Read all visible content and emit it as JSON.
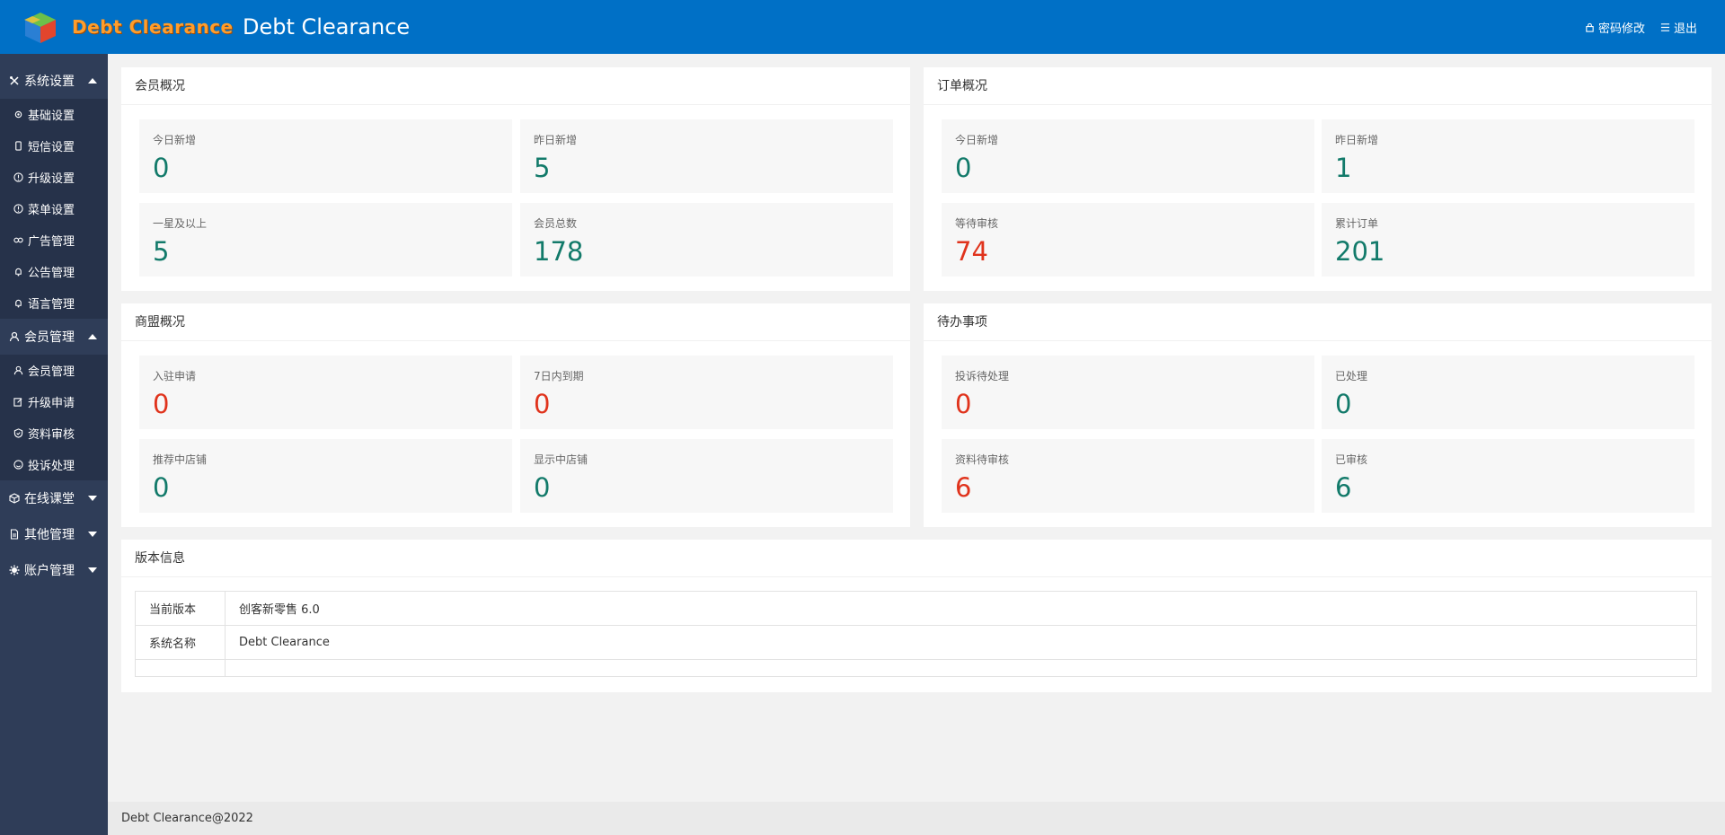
{
  "header": {
    "logo_text": "Debt Clearance",
    "title": "Debt Clearance",
    "links": {
      "password": "密码修改",
      "logout": "退出"
    }
  },
  "sidebar": {
    "groups": [
      {
        "label": "系统设置",
        "icon": "tools-icon",
        "expanded": true,
        "items": [
          {
            "label": "基础设置",
            "icon": "gear-icon"
          },
          {
            "label": "短信设置",
            "icon": "phone-icon"
          },
          {
            "label": "升级设置",
            "icon": "info-circle-icon"
          },
          {
            "label": "菜单设置",
            "icon": "info-circle-icon"
          },
          {
            "label": "广告管理",
            "icon": "link-icon"
          },
          {
            "label": "公告管理",
            "icon": "bell-icon"
          },
          {
            "label": "语言管理",
            "icon": "bell-icon"
          }
        ]
      },
      {
        "label": "会员管理",
        "icon": "user-icon",
        "expanded": true,
        "items": [
          {
            "label": "会员管理",
            "icon": "user-icon"
          },
          {
            "label": "升级申请",
            "icon": "edit-icon"
          },
          {
            "label": "资料审核",
            "icon": "shield-icon"
          },
          {
            "label": "投诉处理",
            "icon": "smile-icon"
          }
        ]
      },
      {
        "label": "在线课堂",
        "icon": "cube-icon",
        "expanded": false,
        "items": []
      },
      {
        "label": "其他管理",
        "icon": "file-icon",
        "expanded": false,
        "items": []
      },
      {
        "label": "账户管理",
        "icon": "gear-icon",
        "expanded": false,
        "items": []
      }
    ]
  },
  "cards": {
    "members": {
      "title": "会员概况",
      "tiles": [
        {
          "label": "今日新增",
          "value": "0",
          "color": "#127a6a"
        },
        {
          "label": "昨日新增",
          "value": "5",
          "color": "#127a6a"
        },
        {
          "label": "一星及以上",
          "value": "5",
          "color": "#127a6a"
        },
        {
          "label": "会员总数",
          "value": "178",
          "color": "#127a6a"
        }
      ]
    },
    "orders": {
      "title": "订单概况",
      "tiles": [
        {
          "label": "今日新增",
          "value": "0",
          "color": "#127a6a"
        },
        {
          "label": "昨日新增",
          "value": "1",
          "color": "#127a6a"
        },
        {
          "label": "等待审核",
          "value": "74",
          "color": "#e0331c"
        },
        {
          "label": "累计订单",
          "value": "201",
          "color": "#127a6a"
        }
      ]
    },
    "merchants": {
      "title": "商盟概况",
      "tiles": [
        {
          "label": "入驻申请",
          "value": "0",
          "color": "#e0331c"
        },
        {
          "label": "7日内到期",
          "value": "0",
          "color": "#e0331c"
        },
        {
          "label": "推荐中店铺",
          "value": "0",
          "color": "#127a6a"
        },
        {
          "label": "显示中店铺",
          "value": "0",
          "color": "#127a6a"
        }
      ]
    },
    "todo": {
      "title": "待办事项",
      "tiles": [
        {
          "label": "投诉待处理",
          "value": "0",
          "color": "#e0331c"
        },
        {
          "label": "已处理",
          "value": "0",
          "color": "#127a6a"
        },
        {
          "label": "资料待审核",
          "value": "6",
          "color": "#e0331c"
        },
        {
          "label": "已审核",
          "value": "6",
          "color": "#127a6a"
        }
      ]
    }
  },
  "version": {
    "title": "版本信息",
    "rows": [
      {
        "key": "当前版本",
        "value": "创客新零售 6.0"
      },
      {
        "key": "系统名称",
        "value": "Debt Clearance"
      }
    ]
  },
  "footer": {
    "text": "Debt Clearance@2022"
  }
}
